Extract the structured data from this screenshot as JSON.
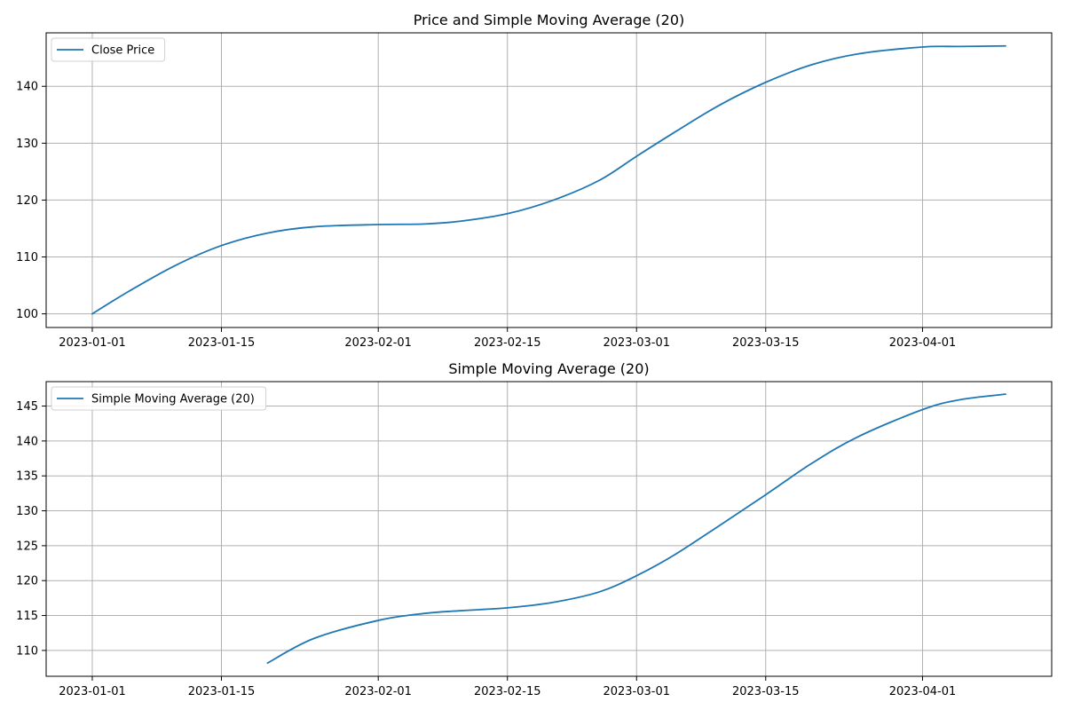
{
  "figure": {
    "background": "#ffffff"
  },
  "chart_data": [
    {
      "type": "line",
      "title": "Price and Simple Moving Average (20)",
      "xlabel": "",
      "ylabel": "",
      "x_type": "date",
      "xlim": [
        "2022-12-27",
        "2023-04-15"
      ],
      "x_ticks": [
        "2023-01-01",
        "2023-01-15",
        "2023-02-01",
        "2023-02-15",
        "2023-03-01",
        "2023-03-15",
        "2023-04-01"
      ],
      "ylim": [
        97.6,
        149.4
      ],
      "y_ticks": [
        100,
        110,
        120,
        130,
        140
      ],
      "grid": true,
      "legend_position": "upper-left",
      "color": "#1f77b4",
      "series": [
        {
          "name": "Close Price",
          "points": [
            [
              "2023-01-01",
              100.0
            ],
            [
              "2023-01-05",
              104.0
            ],
            [
              "2023-01-10",
              108.5
            ],
            [
              "2023-01-15",
              112.0
            ],
            [
              "2023-01-20",
              114.2
            ],
            [
              "2023-01-25",
              115.3
            ],
            [
              "2023-02-01",
              115.7
            ],
            [
              "2023-02-06",
              115.8
            ],
            [
              "2023-02-10",
              116.3
            ],
            [
              "2023-02-15",
              117.6
            ],
            [
              "2023-02-20",
              120.0
            ],
            [
              "2023-02-25",
              123.5
            ],
            [
              "2023-03-01",
              127.7
            ],
            [
              "2023-03-05",
              131.8
            ],
            [
              "2023-03-10",
              136.7
            ],
            [
              "2023-03-15",
              140.7
            ],
            [
              "2023-03-20",
              143.8
            ],
            [
              "2023-03-25",
              145.7
            ],
            [
              "2023-04-01",
              146.9
            ],
            [
              "2023-04-05",
              147.0
            ],
            [
              "2023-04-10",
              147.1
            ]
          ]
        }
      ]
    },
    {
      "type": "line",
      "title": "Simple Moving Average (20)",
      "xlabel": "",
      "ylabel": "",
      "x_type": "date",
      "xlim": [
        "2022-12-27",
        "2023-04-15"
      ],
      "x_ticks": [
        "2023-01-01",
        "2023-01-15",
        "2023-02-01",
        "2023-02-15",
        "2023-03-01",
        "2023-03-15",
        "2023-04-01"
      ],
      "ylim": [
        106.3,
        148.5
      ],
      "y_ticks": [
        110,
        115,
        120,
        125,
        130,
        135,
        140,
        145
      ],
      "grid": true,
      "legend_position": "upper-left",
      "color": "#1f77b4",
      "series": [
        {
          "name": "Simple Moving Average (20)",
          "points": [
            [
              "2023-01-20",
              108.2
            ],
            [
              "2023-01-25",
              111.7
            ],
            [
              "2023-02-01",
              114.3
            ],
            [
              "2023-02-06",
              115.3
            ],
            [
              "2023-02-10",
              115.7
            ],
            [
              "2023-02-15",
              116.1
            ],
            [
              "2023-02-20",
              116.9
            ],
            [
              "2023-02-25",
              118.4
            ],
            [
              "2023-03-01",
              120.7
            ],
            [
              "2023-03-05",
              123.6
            ],
            [
              "2023-03-10",
              127.9
            ],
            [
              "2023-03-15",
              132.3
            ],
            [
              "2023-03-20",
              136.8
            ],
            [
              "2023-03-25",
              140.6
            ],
            [
              "2023-04-01",
              144.5
            ],
            [
              "2023-04-05",
              145.9
            ],
            [
              "2023-04-10",
              146.7
            ]
          ]
        }
      ]
    }
  ]
}
